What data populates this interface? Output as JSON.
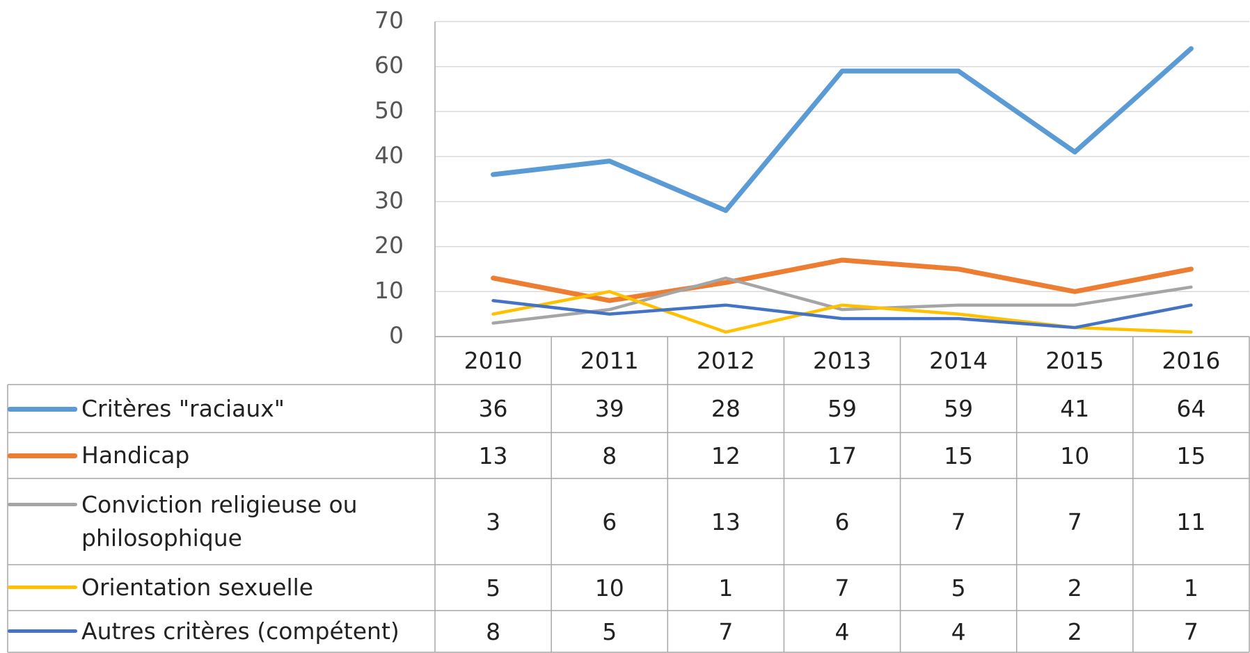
{
  "chart_data": {
    "type": "line",
    "categories": [
      "2010",
      "2011",
      "2012",
      "2013",
      "2014",
      "2015",
      "2016"
    ],
    "ylim": [
      0,
      70
    ],
    "yticks": [
      0,
      10,
      20,
      30,
      40,
      50,
      60,
      70
    ],
    "grid": true,
    "series": [
      {
        "name": "Critères \"raciaux\"",
        "color": "#5b9bd5",
        "values": [
          36,
          39,
          28,
          59,
          59,
          41,
          64
        ]
      },
      {
        "name": "Handicap",
        "color": "#ed7d31",
        "values": [
          13,
          8,
          12,
          17,
          15,
          10,
          15
        ]
      },
      {
        "name": "Conviction religieuse ou philosophique",
        "color": "#a5a5a5",
        "values": [
          3,
          6,
          13,
          6,
          7,
          7,
          11
        ]
      },
      {
        "name": "Orientation sexuelle",
        "color": "#ffc000",
        "values": [
          5,
          10,
          1,
          7,
          5,
          2,
          1
        ]
      },
      {
        "name": "Autres critères (compétent)",
        "color": "#4472c4",
        "values": [
          8,
          5,
          7,
          4,
          4,
          2,
          7
        ]
      }
    ]
  }
}
